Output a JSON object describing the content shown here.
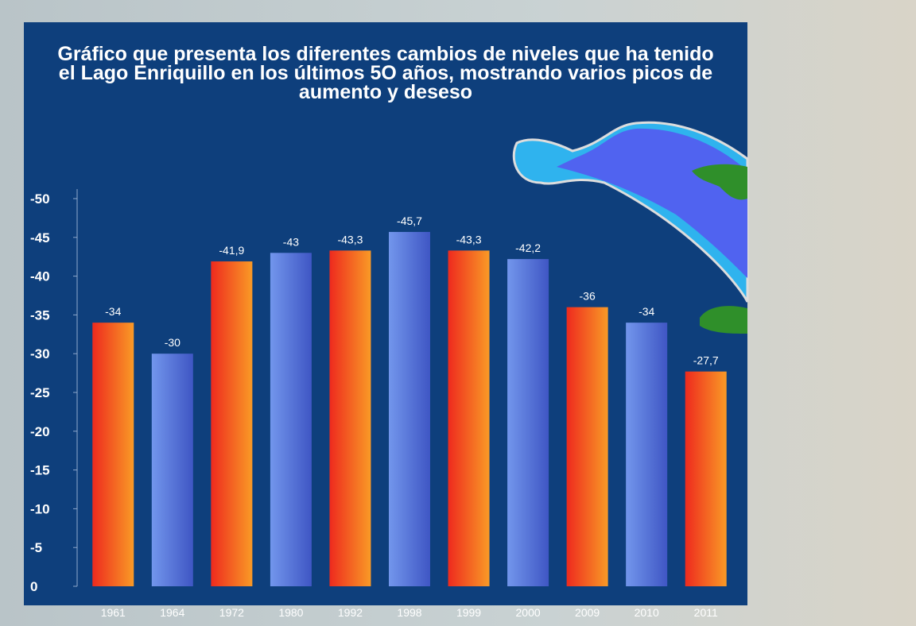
{
  "chart_data": {
    "type": "bar",
    "title": "Gráfico que presenta los diferentes cambios de niveles que ha tenido el Lago Enriquillo en los últimos 5O años, mostrando varios picos de aumento y deseso",
    "categories": [
      "1961",
      "1964",
      "1972",
      "1980",
      "1992",
      "1998",
      "1999",
      "2000",
      "2009",
      "2010",
      "2011"
    ],
    "values": [
      -34,
      -30,
      -41.9,
      -43,
      -43.3,
      -45.7,
      -43.3,
      -42.2,
      -36,
      -34,
      -27.7
    ],
    "value_labels": [
      "-34",
      "-30",
      "-41,9",
      "-43",
      "-43,3",
      "-45,7",
      "-43,3",
      "-42,2",
      "-36",
      "-34",
      "-27,7"
    ],
    "colors": [
      [
        "#ee2a1e",
        "#f99a26"
      ],
      [
        "#7296ec",
        "#3f56c4"
      ],
      [
        "#ee2a1e",
        "#f99a26"
      ],
      [
        "#7296ec",
        "#3f56c4"
      ],
      [
        "#ee2a1e",
        "#f99a26"
      ],
      [
        "#7296ec",
        "#3f56c4"
      ],
      [
        "#ee2a1e",
        "#f99a26"
      ],
      [
        "#7296ec",
        "#3f56c4"
      ],
      [
        "#ee2a1e",
        "#f99a26"
      ],
      [
        "#7296ec",
        "#3f56c4"
      ],
      [
        "#ee2a1e",
        "#f99a26"
      ]
    ],
    "ylim": [
      0,
      -50
    ],
    "yticks": [
      0,
      -5,
      -10,
      -15,
      -20,
      -25,
      -30,
      -35,
      -40,
      -45,
      -50
    ]
  }
}
